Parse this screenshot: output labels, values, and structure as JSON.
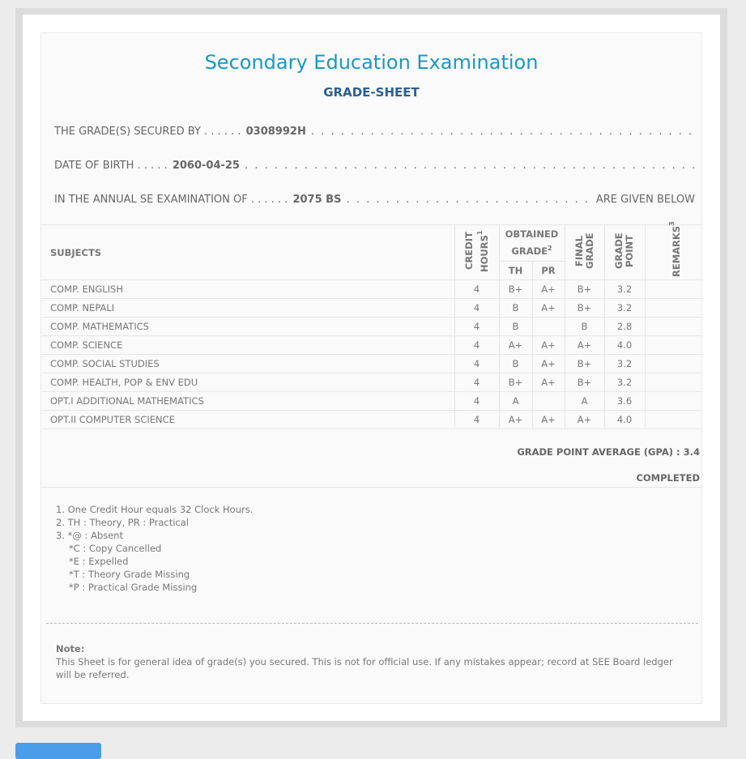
{
  "title": "Secondary Education Examination",
  "subtitle": "GRADE-SHEET",
  "info": {
    "line1_label": "THE GRADE(S) SECURED BY . . . . . .",
    "symbol_no": "0308992H",
    "line2_label": "DATE OF BIRTH . . . . .",
    "dob": "2060-04-25",
    "line3_label": "IN THE ANNUAL SE EXAMINATION OF . . . . . .",
    "year": "2075 BS",
    "line3_tail": "ARE GIVEN BELOW",
    "dots": ". . . . . . . . . . . . . . . . . . . . . . . . . . . . . . . . . . . . . . . . . . . . . . . . . . . . . . . . . . . . . . . . . . . . . . . . . . . . . . . . . . . . ."
  },
  "table": {
    "headers": {
      "subjects": "SUBJECTS",
      "credit": "CREDIT HOURS",
      "credit_sup": "1",
      "obtained": "OBTAINED GRADE",
      "obtained_sup": "2",
      "th": "TH",
      "pr": "PR",
      "final": "FINAL GRADE",
      "gp": "GRADE POINT",
      "remarks": "REMARKS",
      "remarks_sup": "3"
    },
    "rows": [
      {
        "subject": "COMP. ENGLISH",
        "credit": "4",
        "th": "B+",
        "pr": "A+",
        "final": "B+",
        "gp": "3.2",
        "remarks": ""
      },
      {
        "subject": "COMP. NEPALI",
        "credit": "4",
        "th": "B",
        "pr": "A+",
        "final": "B+",
        "gp": "3.2",
        "remarks": ""
      },
      {
        "subject": "COMP. MATHEMATICS",
        "credit": "4",
        "th": "B",
        "pr": "",
        "final": "B",
        "gp": "2.8",
        "remarks": ""
      },
      {
        "subject": "COMP. SCIENCE",
        "credit": "4",
        "th": "A+",
        "pr": "A+",
        "final": "A+",
        "gp": "4.0",
        "remarks": ""
      },
      {
        "subject": "COMP. SOCIAL STUDIES",
        "credit": "4",
        "th": "B",
        "pr": "A+",
        "final": "B+",
        "gp": "3.2",
        "remarks": ""
      },
      {
        "subject": "COMP. HEALTH, POP & ENV EDU",
        "credit": "4",
        "th": "B+",
        "pr": "A+",
        "final": "B+",
        "gp": "3.2",
        "remarks": ""
      },
      {
        "subject": "OPT.I ADDITIONAL MATHEMATICS",
        "credit": "4",
        "th": "A",
        "pr": "",
        "final": "A",
        "gp": "3.6",
        "remarks": ""
      },
      {
        "subject": "OPT.II COMPUTER SCIENCE",
        "credit": "4",
        "th": "A+",
        "pr": "A+",
        "final": "A+",
        "gp": "4.0",
        "remarks": ""
      }
    ]
  },
  "gpa": "GRADE POINT AVERAGE (GPA) : 3.4",
  "status": "COMPLETED",
  "footnotes": [
    "1. One Credit Hour equals 32 Clock Hours.",
    "2. TH : Theory, PR : Practical",
    "3. *@ : Absent",
    "*C : Copy Cancelled",
    "*E : Expelled",
    "*T : Theory Grade Missing",
    "*P : Practical Grade Missing"
  ],
  "note": {
    "label": "Note:",
    "text": "This Sheet is for general idea of grade(s) you secured. This is not for official use. If any mistakes appear; record at SEE Board ledger will be referred."
  },
  "colors": {
    "title": "#1a97c4",
    "subtitle": "#2b5f8e",
    "button": "#4a9de8"
  }
}
